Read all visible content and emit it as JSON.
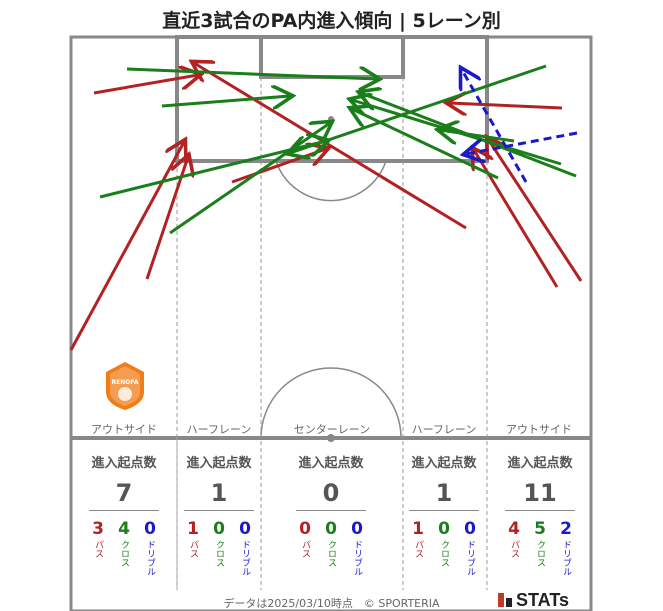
{
  "title": "直近3試合のPA内進入傾向 | 5レーン別",
  "lanes": [
    {
      "label": "アウトサイド",
      "stat_title": "進入起点数",
      "total": "7",
      "pass": "3",
      "cross": "4",
      "dribble": "0"
    },
    {
      "label": "ハーフレーン",
      "stat_title": "進入起点数",
      "total": "1",
      "pass": "1",
      "cross": "0",
      "dribble": "0"
    },
    {
      "label": "センターレーン",
      "stat_title": "進入起点数",
      "total": "0",
      "pass": "0",
      "cross": "0",
      "dribble": "0"
    },
    {
      "label": "ハーフレーン",
      "stat_title": "進入起点数",
      "total": "1",
      "pass": "1",
      "cross": "0",
      "dribble": "0"
    },
    {
      "label": "アウトサイド",
      "stat_title": "進入起点数",
      "total": "11",
      "pass": "4",
      "cross": "5",
      "dribble": "2"
    }
  ],
  "legend_labels": {
    "pass": "パス",
    "cross": "クロス",
    "dribble": "ドリブル"
  },
  "colors": {
    "pass": "#b22222",
    "cross": "#1a7f1a",
    "dribble": "#1a1acc",
    "pitch_line": "#888888"
  },
  "footer": "データは2025/03/10時点　© SPORTERIA",
  "brand": "STATs",
  "team_logo_text": "RENOFA"
}
